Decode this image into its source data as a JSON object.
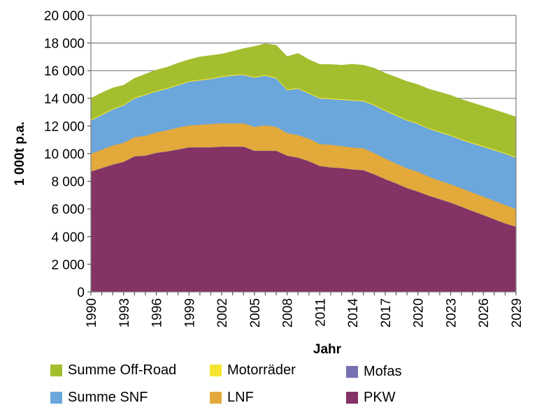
{
  "chart_data": {
    "type": "area",
    "stacked": true,
    "title": "",
    "xlabel": "Jahr",
    "ylabel": "1 000t p.a.",
    "ylim": [
      0,
      20000
    ],
    "yticks": [
      0,
      2000,
      4000,
      6000,
      8000,
      10000,
      12000,
      14000,
      16000,
      18000,
      20000
    ],
    "ytick_labels": [
      "0",
      "2 000",
      "4 000",
      "6 000",
      "8 000",
      "10 000",
      "12 000",
      "14 000",
      "16 000",
      "18 000",
      "20 000"
    ],
    "xlim": [
      1990,
      2029
    ],
    "xtick_labels": [
      "1990",
      "1993",
      "1996",
      "1999",
      "2002",
      "2005",
      "2008",
      "2011",
      "2014",
      "2017",
      "2020",
      "2023",
      "2026",
      "2029"
    ],
    "grid": "horizontal",
    "legend_position": "bottom",
    "x": [
      1990,
      1991,
      1992,
      1993,
      1994,
      1995,
      1996,
      1997,
      1998,
      1999,
      2000,
      2001,
      2002,
      2003,
      2004,
      2005,
      2006,
      2007,
      2008,
      2009,
      2010,
      2011,
      2012,
      2013,
      2014,
      2015,
      2016,
      2017,
      2018,
      2019,
      2020,
      2021,
      2022,
      2023,
      2024,
      2025,
      2026,
      2027,
      2028,
      2029
    ],
    "series": [
      {
        "name": "PKW",
        "color": "#853264",
        "values": [
          8700,
          8950,
          9200,
          9400,
          9800,
          9850,
          10050,
          10150,
          10300,
          10450,
          10450,
          10450,
          10500,
          10500,
          10500,
          10200,
          10200,
          10200,
          9850,
          9700,
          9450,
          9100,
          9000,
          8950,
          8850,
          8800,
          8500,
          8150,
          7850,
          7500,
          7250,
          6950,
          6700,
          6450,
          6150,
          5850,
          5550,
          5250,
          4950,
          4700
        ]
      },
      {
        "name": "Mofas",
        "color": "#7671b2",
        "values": [
          20,
          20,
          20,
          20,
          20,
          20,
          20,
          20,
          20,
          20,
          20,
          20,
          20,
          20,
          20,
          20,
          20,
          20,
          20,
          20,
          20,
          20,
          20,
          20,
          20,
          20,
          20,
          20,
          20,
          20,
          20,
          20,
          20,
          20,
          20,
          20,
          20,
          20,
          20,
          20
        ]
      },
      {
        "name": "LNF",
        "color": "#e3a93b",
        "values": [
          1280,
          1330,
          1380,
          1380,
          1380,
          1430,
          1480,
          1530,
          1580,
          1580,
          1630,
          1680,
          1680,
          1680,
          1680,
          1730,
          1830,
          1730,
          1630,
          1630,
          1630,
          1580,
          1630,
          1580,
          1580,
          1580,
          1530,
          1480,
          1430,
          1430,
          1430,
          1380,
          1330,
          1330,
          1330,
          1330,
          1330,
          1330,
          1330,
          1280
        ]
      },
      {
        "name": "Summe SNF",
        "color": "#6ba7db",
        "values": [
          2400,
          2500,
          2600,
          2700,
          2800,
          2950,
          2950,
          3000,
          3050,
          3150,
          3200,
          3250,
          3350,
          3450,
          3500,
          3550,
          3600,
          3500,
          3100,
          3350,
          3250,
          3300,
          3300,
          3350,
          3400,
          3400,
          3450,
          3450,
          3450,
          3450,
          3450,
          3450,
          3500,
          3500,
          3500,
          3550,
          3600,
          3650,
          3700,
          3700
        ]
      },
      {
        "name": "Motorräder",
        "color": "#f5e532",
        "values": [
          60,
          60,
          60,
          60,
          60,
          60,
          60,
          60,
          60,
          60,
          60,
          60,
          60,
          60,
          60,
          60,
          60,
          60,
          60,
          60,
          60,
          60,
          60,
          60,
          60,
          60,
          60,
          60,
          60,
          60,
          60,
          60,
          60,
          60,
          60,
          60,
          60,
          60,
          60,
          60
        ]
      },
      {
        "name": "Summe Off-Road",
        "color": "#a3be2e",
        "values": [
          1540,
          1540,
          1490,
          1390,
          1390,
          1440,
          1490,
          1490,
          1540,
          1540,
          1640,
          1640,
          1590,
          1690,
          1840,
          2190,
          2240,
          2330,
          2360,
          2490,
          2390,
          2390,
          2440,
          2440,
          2560,
          2540,
          2620,
          2660,
          2720,
          2760,
          2790,
          2810,
          2840,
          2860,
          2860,
          2860,
          2870,
          2860,
          2860,
          2890
        ]
      }
    ]
  },
  "legend": {
    "items": [
      {
        "label": "Summe Off-Road",
        "color": "#a3be2e"
      },
      {
        "label": "Motorräder",
        "color": "#f5e532"
      },
      {
        "label": "Mofas",
        "color": "#7671b2"
      },
      {
        "label": "Summe SNF",
        "color": "#6ba7db"
      },
      {
        "label": "LNF",
        "color": "#e3a93b"
      },
      {
        "label": "PKW",
        "color": "#853264"
      }
    ]
  }
}
